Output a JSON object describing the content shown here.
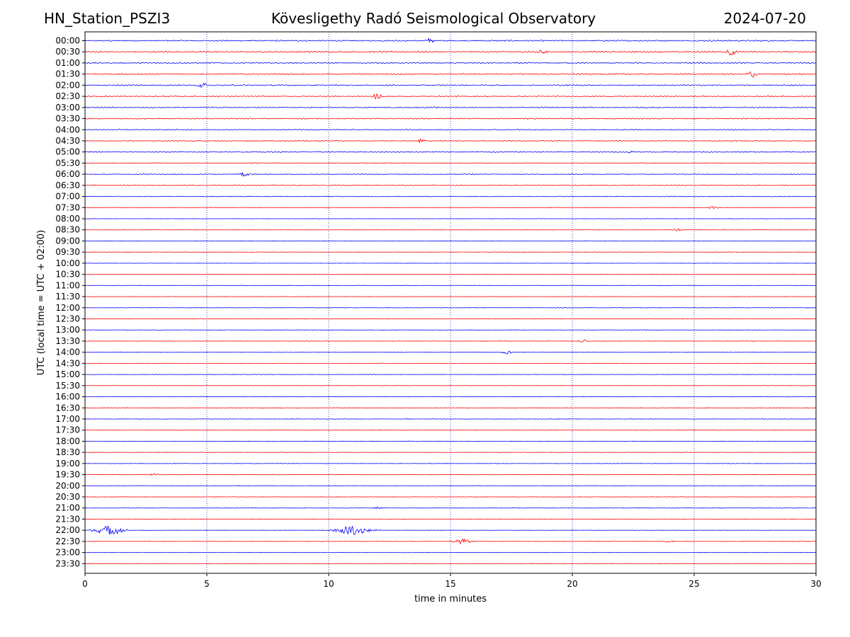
{
  "header": {
    "station": "HN_Station_PSZI3",
    "observatory": "Kövesligethy Radó Seismological Observatory",
    "date": "2024-07-20"
  },
  "colors": {
    "odd_rows": "#0000ff",
    "even_rows": "#ff0000",
    "axes": "#000000",
    "grid": "#000080"
  },
  "chart_data": {
    "type": "line",
    "title": "Kövesligethy Radó Seismological Observatory",
    "xlabel": "time in minutes",
    "ylabel": "UTC (local time = UTC + 02:00)",
    "xlim": [
      0,
      30
    ],
    "x_ticks": [
      "0",
      "5",
      "10",
      "15",
      "20",
      "25",
      "30"
    ],
    "x_tick_values": [
      0,
      5,
      10,
      15,
      20,
      25,
      30
    ],
    "grid": "vertical dotted lines at 5-minute ticks",
    "rows": [
      "00:00",
      "00:30",
      "01:00",
      "01:30",
      "02:00",
      "02:30",
      "03:00",
      "03:30",
      "04:00",
      "04:30",
      "05:00",
      "05:30",
      "06:00",
      "06:30",
      "07:00",
      "07:30",
      "08:00",
      "08:30",
      "09:00",
      "09:30",
      "10:00",
      "10:30",
      "11:00",
      "11:30",
      "12:00",
      "12:30",
      "13:00",
      "13:30",
      "14:00",
      "14:30",
      "15:00",
      "15:30",
      "16:00",
      "16:30",
      "17:00",
      "17:30",
      "18:00",
      "18:30",
      "19:00",
      "19:30",
      "20:00",
      "20:30",
      "21:00",
      "21:30",
      "22:00",
      "22:30",
      "23:00",
      "23:30"
    ],
    "row_noise_level": [
      1.0,
      1.0,
      0.9,
      0.9,
      0.9,
      0.8,
      0.8,
      0.8,
      0.7,
      0.7,
      0.7,
      0.6,
      0.6,
      0.6,
      0.5,
      0.4,
      0.3,
      0.3,
      0.3,
      0.3,
      0.3,
      0.35,
      0.35,
      0.35,
      0.35,
      0.35,
      0.35,
      0.35,
      0.35,
      0.35,
      0.3,
      0.3,
      0.35,
      0.35,
      0.35,
      0.35,
      0.3,
      0.3,
      0.3,
      0.3,
      0.3,
      0.3,
      0.3,
      0.3,
      0.3,
      0.3,
      0.25,
      0.25
    ],
    "events": [
      {
        "row": "00:00",
        "minute": 14.1,
        "amplitude": 3.5
      },
      {
        "row": "00:30",
        "minute": 26.5,
        "amplitude": 5
      },
      {
        "row": "00:30",
        "minute": 18.8,
        "amplitude": 3
      },
      {
        "row": "01:30",
        "minute": 27.4,
        "amplitude": 5
      },
      {
        "row": "02:00",
        "minute": 4.8,
        "amplitude": 3
      },
      {
        "row": "02:30",
        "minute": 12.0,
        "amplitude": 3.5
      },
      {
        "row": "04:30",
        "minute": 13.8,
        "amplitude": 3
      },
      {
        "row": "05:00",
        "minute": 22.4,
        "amplitude": 3
      },
      {
        "row": "06:00",
        "minute": 6.5,
        "amplitude": 3
      },
      {
        "row": "07:30",
        "minute": 25.8,
        "amplitude": 2
      },
      {
        "row": "08:30",
        "minute": 24.3,
        "amplitude": 1.8
      },
      {
        "row": "13:30",
        "minute": 20.5,
        "amplitude": 1.8
      },
      {
        "row": "14:00",
        "minute": 17.3,
        "amplitude": 2.2
      },
      {
        "row": "19:30",
        "minute": 2.8,
        "amplitude": 1.5
      },
      {
        "row": "21:00",
        "minute": 12.0,
        "amplitude": 1.8
      },
      {
        "row": "22:00",
        "minute": 1.0,
        "amplitude": 6.5,
        "duration": 1.0
      },
      {
        "row": "22:00",
        "minute": 11.0,
        "amplitude": 6,
        "duration": 1.2
      },
      {
        "row": "22:30",
        "minute": 15.5,
        "amplitude": 3.5,
        "duration": 0.6
      },
      {
        "row": "22:30",
        "minute": 24.0,
        "amplitude": 1.5
      }
    ]
  }
}
